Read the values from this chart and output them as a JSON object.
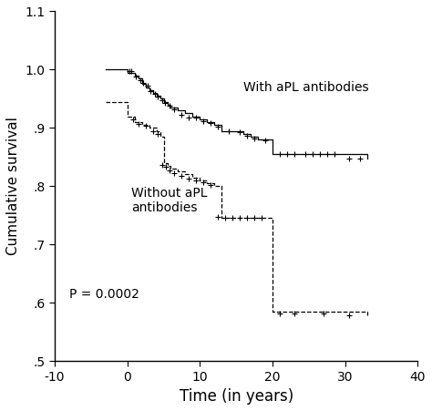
{
  "title": "",
  "xlabel": "Time (in years)",
  "ylabel": "Cumulative survival",
  "xlim": [
    -10,
    40
  ],
  "ylim": [
    0.5,
    1.1
  ],
  "yticks": [
    0.5,
    0.6,
    0.7,
    0.8,
    0.9,
    1.0,
    1.1
  ],
  "ytick_labels": [
    ".5",
    ".6",
    ".7",
    ".8",
    ".9",
    "1.0",
    "1.1"
  ],
  "xticks": [
    -10,
    0,
    10,
    20,
    30,
    40
  ],
  "curve1_steps": [
    [
      -3,
      1.0
    ],
    [
      0,
      1.0
    ],
    [
      0,
      0.995
    ],
    [
      1,
      0.99
    ],
    [
      1.5,
      0.985
    ],
    [
      2,
      0.975
    ],
    [
      2.5,
      0.97
    ],
    [
      3,
      0.965
    ],
    [
      3.5,
      0.96
    ],
    [
      4,
      0.955
    ],
    [
      4.5,
      0.95
    ],
    [
      5,
      0.945
    ],
    [
      5.5,
      0.94
    ],
    [
      6,
      0.935
    ],
    [
      7,
      0.93
    ],
    [
      8,
      0.925
    ],
    [
      9,
      0.92
    ],
    [
      10,
      0.915
    ],
    [
      11,
      0.91
    ],
    [
      12,
      0.905
    ],
    [
      13,
      0.9
    ],
    [
      13,
      0.895
    ],
    [
      15,
      0.895
    ],
    [
      16,
      0.89
    ],
    [
      17,
      0.885
    ],
    [
      18,
      0.88
    ],
    [
      20,
      0.875
    ],
    [
      20,
      0.855
    ],
    [
      21,
      0.855
    ],
    [
      22,
      0.855
    ],
    [
      23,
      0.855
    ],
    [
      24,
      0.855
    ],
    [
      25,
      0.855
    ],
    [
      26,
      0.855
    ],
    [
      27,
      0.855
    ],
    [
      28,
      0.855
    ],
    [
      29,
      0.855
    ],
    [
      30,
      0.855
    ],
    [
      31,
      0.855
    ],
    [
      32,
      0.855
    ],
    [
      33,
      0.848
    ]
  ],
  "curve1_censors": [
    [
      0.5,
      0.998
    ],
    [
      1.2,
      0.988
    ],
    [
      1.8,
      0.982
    ],
    [
      2.2,
      0.977
    ],
    [
      2.8,
      0.972
    ],
    [
      3.2,
      0.963
    ],
    [
      3.8,
      0.958
    ],
    [
      4.2,
      0.953
    ],
    [
      4.8,
      0.948
    ],
    [
      5.2,
      0.943
    ],
    [
      5.8,
      0.938
    ],
    [
      6.5,
      0.932
    ],
    [
      7.5,
      0.922
    ],
    [
      8.5,
      0.918
    ],
    [
      9.5,
      0.917
    ],
    [
      10.5,
      0.912
    ],
    [
      11.5,
      0.908
    ],
    [
      12.5,
      0.902
    ],
    [
      14,
      0.895
    ],
    [
      15.5,
      0.892
    ],
    [
      16.5,
      0.887
    ],
    [
      17.5,
      0.882
    ],
    [
      19,
      0.878
    ],
    [
      21,
      0.855
    ],
    [
      22,
      0.855
    ],
    [
      23,
      0.855
    ],
    [
      24.5,
      0.855
    ],
    [
      25.5,
      0.855
    ],
    [
      26.5,
      0.855
    ],
    [
      27.5,
      0.855
    ],
    [
      28.5,
      0.855
    ],
    [
      30.5,
      0.848
    ],
    [
      32,
      0.848
    ]
  ],
  "curve2_steps": [
    [
      -3,
      0.945
    ],
    [
      0,
      0.945
    ],
    [
      0,
      0.92
    ],
    [
      1,
      0.91
    ],
    [
      2,
      0.905
    ],
    [
      3,
      0.9
    ],
    [
      4,
      0.895
    ],
    [
      4.5,
      0.885
    ],
    [
      5,
      0.84
    ],
    [
      5.5,
      0.835
    ],
    [
      6,
      0.83
    ],
    [
      7,
      0.825
    ],
    [
      8,
      0.82
    ],
    [
      9,
      0.815
    ],
    [
      10,
      0.81
    ],
    [
      11,
      0.805
    ],
    [
      12,
      0.8
    ],
    [
      13,
      0.75
    ],
    [
      13,
      0.745
    ],
    [
      14,
      0.745
    ],
    [
      15,
      0.745
    ],
    [
      16,
      0.745
    ],
    [
      17,
      0.745
    ],
    [
      18,
      0.745
    ],
    [
      19,
      0.745
    ],
    [
      20,
      0.745
    ],
    [
      20,
      0.585
    ],
    [
      21,
      0.585
    ],
    [
      22,
      0.585
    ],
    [
      23,
      0.585
    ],
    [
      24,
      0.585
    ],
    [
      25,
      0.585
    ],
    [
      26,
      0.585
    ],
    [
      27,
      0.585
    ],
    [
      28,
      0.585
    ],
    [
      29,
      0.585
    ],
    [
      30,
      0.585
    ],
    [
      31,
      0.585
    ],
    [
      32,
      0.585
    ],
    [
      33,
      0.578
    ]
  ],
  "curve2_censors": [
    [
      0.3,
      0.998
    ],
    [
      0.8,
      0.915
    ],
    [
      1.5,
      0.907
    ],
    [
      2.5,
      0.903
    ],
    [
      3.5,
      0.895
    ],
    [
      4.2,
      0.89
    ],
    [
      4.8,
      0.837
    ],
    [
      5.3,
      0.833
    ],
    [
      5.8,
      0.827
    ],
    [
      6.5,
      0.822
    ],
    [
      7.5,
      0.818
    ],
    [
      8.5,
      0.813
    ],
    [
      9.5,
      0.81
    ],
    [
      10.5,
      0.806
    ],
    [
      11.5,
      0.802
    ],
    [
      12.5,
      0.748
    ],
    [
      13.5,
      0.745
    ],
    [
      14.5,
      0.745
    ],
    [
      15.5,
      0.745
    ],
    [
      16.5,
      0.745
    ],
    [
      17.5,
      0.745
    ],
    [
      18.5,
      0.745
    ],
    [
      21,
      0.582
    ],
    [
      23,
      0.582
    ],
    [
      27,
      0.582
    ],
    [
      30.5,
      0.578
    ]
  ],
  "annotation_with": "With aPL antibodies",
  "annotation_without": "Without aPL\nantibodies",
  "annotation_p": "P = 0.0002",
  "line_color": "#000000",
  "background_color": "#ffffff"
}
